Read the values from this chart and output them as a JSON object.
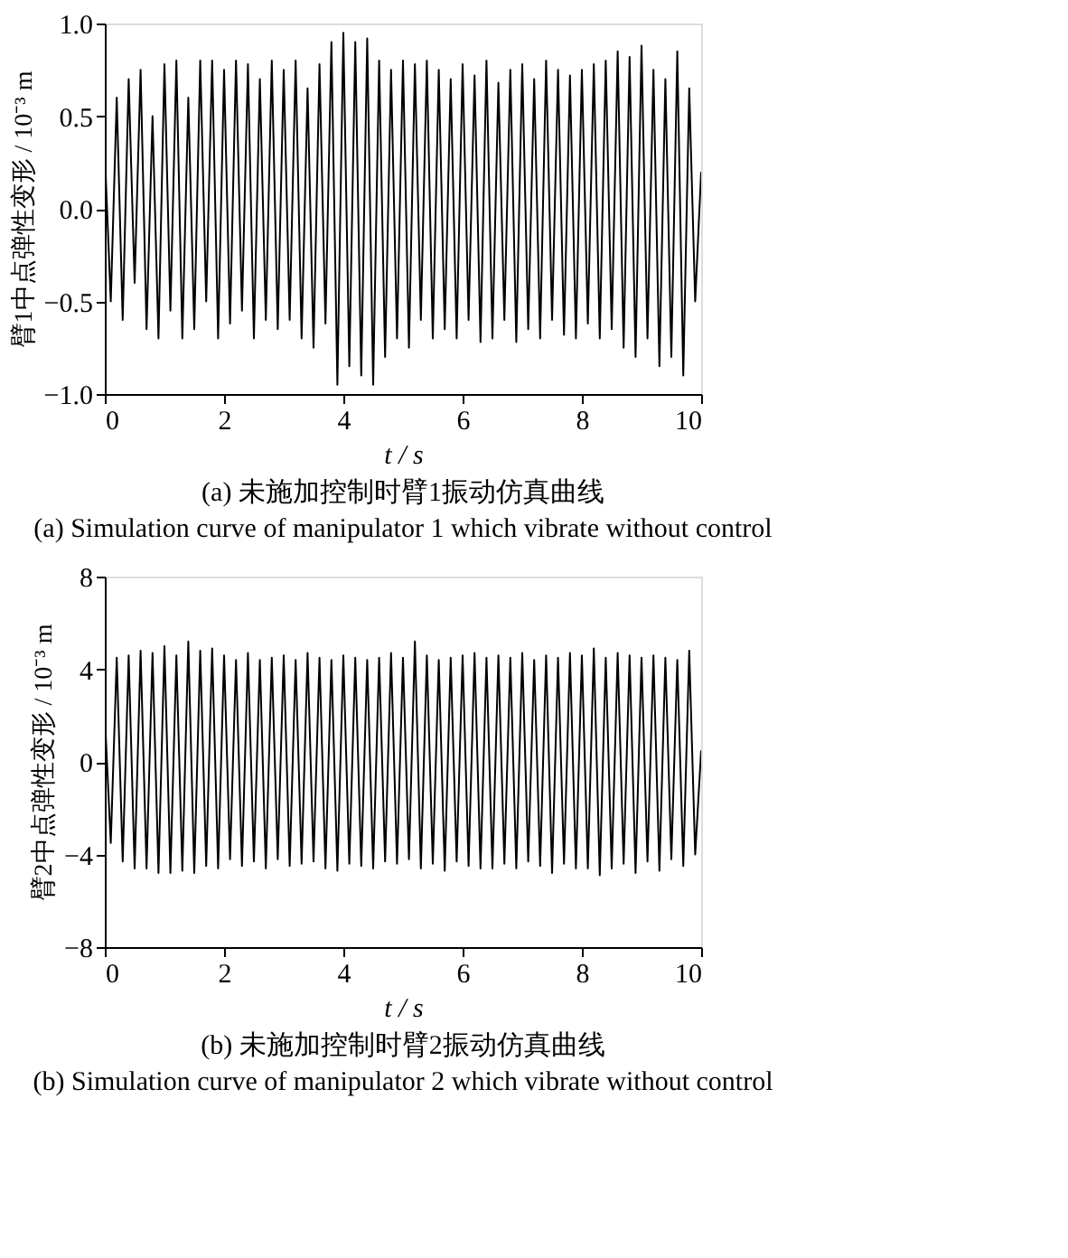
{
  "chart_data": [
    {
      "type": "line",
      "xlabel": "t / s",
      "ylabel": "臂1中点弹性变形 / 10⁻³ m",
      "annotations": [
        "(a)  未施加控制时臂1振动仿真曲线",
        "(a)  Simulation curve of manipulator 1 which vibrate without control"
      ],
      "x": [
        0,
        0.1,
        0.2,
        0.3,
        0.4,
        0.5,
        0.6,
        0.7,
        0.8,
        0.9,
        1,
        1.1,
        1.2,
        1.3,
        1.4,
        1.5,
        1.6,
        1.7,
        1.8,
        1.9,
        2,
        2.1,
        2.2,
        2.3,
        2.4,
        2.5,
        2.6,
        2.7,
        2.8,
        2.9,
        3,
        3.1,
        3.2,
        3.3,
        3.4,
        3.5,
        3.6,
        3.7,
        3.8,
        3.9,
        4,
        4.1,
        4.2,
        4.3,
        4.4,
        4.5,
        4.6,
        4.7,
        4.8,
        4.9,
        5,
        5.1,
        5.2,
        5.3,
        5.4,
        5.5,
        5.6,
        5.7,
        5.8,
        5.9,
        6,
        6.1,
        6.2,
        6.3,
        6.4,
        6.5,
        6.6,
        6.7,
        6.8,
        6.9,
        7,
        7.1,
        7.2,
        7.3,
        7.4,
        7.5,
        7.6,
        7.7,
        7.8,
        7.9,
        8,
        8.1,
        8.2,
        8.3,
        8.4,
        8.5,
        8.6,
        8.7,
        8.8,
        8.9,
        9,
        9.1,
        9.2,
        9.3,
        9.4,
        9.5,
        9.6,
        9.7,
        9.8,
        9.9,
        10
      ],
      "series": [
        {
          "color": "#000000",
          "values": [
            0.3,
            -0.5,
            0.6,
            -0.6,
            0.7,
            -0.4,
            0.75,
            -0.65,
            0.5,
            -0.7,
            0.78,
            -0.55,
            0.8,
            -0.7,
            0.6,
            -0.65,
            0.8,
            -0.5,
            0.8,
            -0.7,
            0.75,
            -0.62,
            0.8,
            -0.55,
            0.78,
            -0.7,
            0.7,
            -0.6,
            0.8,
            -0.65,
            0.75,
            -0.6,
            0.8,
            -0.7,
            0.65,
            -0.75,
            0.78,
            -0.62,
            0.9,
            -0.95,
            0.95,
            -0.85,
            0.9,
            -0.9,
            0.92,
            -0.95,
            0.8,
            -0.8,
            0.75,
            -0.7,
            0.8,
            -0.75,
            0.78,
            -0.6,
            0.8,
            -0.7,
            0.75,
            -0.65,
            0.7,
            -0.7,
            0.78,
            -0.6,
            0.72,
            -0.72,
            0.8,
            -0.7,
            0.68,
            -0.6,
            0.75,
            -0.72,
            0.78,
            -0.65,
            0.7,
            -0.7,
            0.8,
            -0.6,
            0.75,
            -0.68,
            0.72,
            -0.7,
            0.75,
            -0.62,
            0.78,
            -0.7,
            0.8,
            -0.65,
            0.85,
            -0.75,
            0.82,
            -0.8,
            0.88,
            -0.7,
            0.75,
            -0.85,
            0.7,
            -0.8,
            0.85,
            -0.9,
            0.65,
            -0.5,
            0.2
          ]
        }
      ],
      "xlim": [
        0,
        10
      ],
      "xticks": [
        0,
        2,
        4,
        6,
        8,
        10
      ],
      "ylim": [
        -1,
        1
      ],
      "yticks": [
        {
          "value": -1,
          "label": "−1.0"
        },
        {
          "value": -0.5,
          "label": "−0.5"
        },
        {
          "value": 0,
          "label": "0.0"
        },
        {
          "value": 0.5,
          "label": "0.5"
        },
        {
          "value": 1,
          "label": "1.0"
        }
      ],
      "grid": false,
      "line_style": "solid",
      "marker": "none"
    },
    {
      "type": "line",
      "xlabel": "t / s",
      "ylabel": "臂2中点弹性变形 / 10⁻³ m",
      "annotations": [
        "(b)  未施加控制时臂2振动仿真曲线",
        "(b)  Simulation curve of manipulator 2 which vibrate without control"
      ],
      "x": [
        0,
        0.1,
        0.2,
        0.3,
        0.4,
        0.5,
        0.6,
        0.7,
        0.8,
        0.9,
        1,
        1.1,
        1.2,
        1.3,
        1.4,
        1.5,
        1.6,
        1.7,
        1.8,
        1.9,
        2,
        2.1,
        2.2,
        2.3,
        2.4,
        2.5,
        2.6,
        2.7,
        2.8,
        2.9,
        3,
        3.1,
        3.2,
        3.3,
        3.4,
        3.5,
        3.6,
        3.7,
        3.8,
        3.9,
        4,
        4.1,
        4.2,
        4.3,
        4.4,
        4.5,
        4.6,
        4.7,
        4.8,
        4.9,
        5,
        5.1,
        5.2,
        5.3,
        5.4,
        5.5,
        5.6,
        5.7,
        5.8,
        5.9,
        6,
        6.1,
        6.2,
        6.3,
        6.4,
        6.5,
        6.6,
        6.7,
        6.8,
        6.9,
        7,
        7.1,
        7.2,
        7.3,
        7.4,
        7.5,
        7.6,
        7.7,
        7.8,
        7.9,
        8,
        8.1,
        8.2,
        8.3,
        8.4,
        8.5,
        8.6,
        8.7,
        8.8,
        8.9,
        9,
        9.1,
        9.2,
        9.3,
        9.4,
        9.5,
        9.6,
        9.7,
        9.8,
        9.9,
        10
      ],
      "series": [
        {
          "color": "#000000",
          "values": [
            2.0,
            -3.5,
            4.5,
            -4.3,
            4.6,
            -4.6,
            4.8,
            -4.6,
            4.7,
            -4.8,
            5.0,
            -4.8,
            4.6,
            -4.7,
            5.2,
            -4.8,
            4.8,
            -4.5,
            4.9,
            -4.6,
            4.6,
            -4.2,
            4.4,
            -4.5,
            4.7,
            -4.3,
            4.4,
            -4.6,
            4.5,
            -4.2,
            4.6,
            -4.5,
            4.4,
            -4.4,
            4.7,
            -4.3,
            4.5,
            -4.6,
            4.4,
            -4.7,
            4.6,
            -4.4,
            4.5,
            -4.5,
            4.4,
            -4.6,
            4.5,
            -4.3,
            4.7,
            -4.4,
            4.5,
            -4.2,
            5.2,
            -4.6,
            4.6,
            -4.4,
            4.4,
            -4.7,
            4.5,
            -4.3,
            4.6,
            -4.5,
            4.7,
            -4.6,
            4.5,
            -4.6,
            4.6,
            -4.4,
            4.5,
            -4.6,
            4.7,
            -4.3,
            4.4,
            -4.5,
            4.6,
            -4.8,
            4.5,
            -4.4,
            4.7,
            -4.6,
            4.6,
            -4.6,
            4.9,
            -4.9,
            4.5,
            -4.6,
            4.7,
            -4.4,
            4.6,
            -4.8,
            4.5,
            -4.3,
            4.6,
            -4.7,
            4.5,
            -4.2,
            4.4,
            -4.5,
            4.8,
            -4.0,
            0.5
          ]
        }
      ],
      "xlim": [
        0,
        10
      ],
      "xticks": [
        0,
        2,
        4,
        6,
        8,
        10
      ],
      "ylim": [
        -8,
        8
      ],
      "yticks": [
        {
          "value": -8,
          "label": "−8"
        },
        {
          "value": -4,
          "label": "−4"
        },
        0,
        4,
        8
      ],
      "grid": false,
      "line_style": "solid",
      "marker": "none"
    }
  ]
}
